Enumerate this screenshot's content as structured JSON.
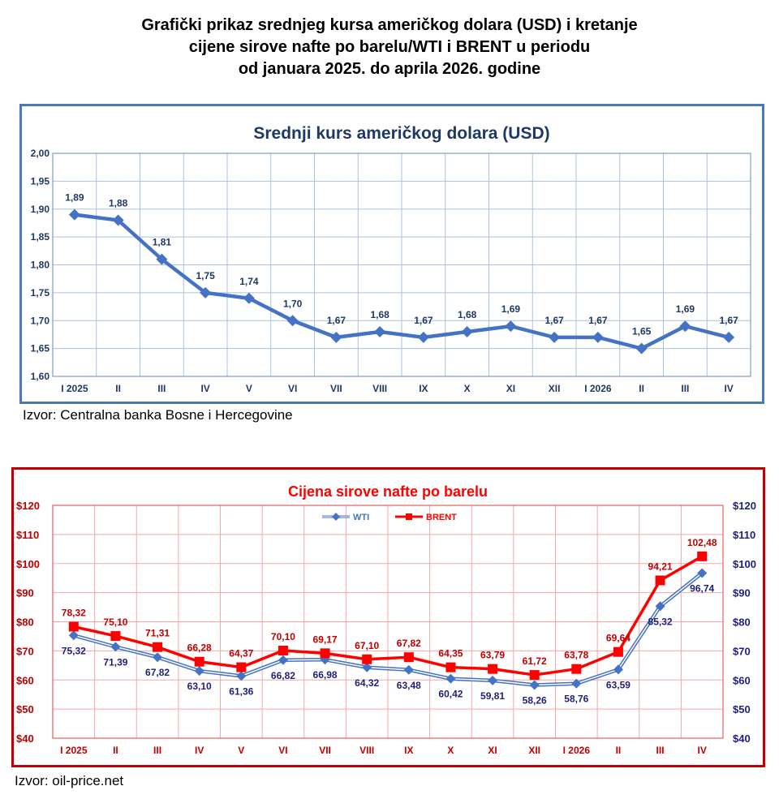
{
  "title_lines": [
    "Grafički prikaz srednjeg kursa američkog dolara (USD) i kretanje",
    "cijene sirove nafte po barelu/WTI i BRENT u periodu",
    "od januara 2025. do aprila 2026. godine"
  ],
  "chart_data": [
    {
      "type": "line",
      "title": "Srednji kurs američkog dolara (USD)",
      "categories": [
        "I 2025",
        "II",
        "III",
        "IV",
        "V",
        "VI",
        "VII",
        "VIII",
        "IX",
        "X",
        "XI",
        "XII",
        "I 2026",
        "II",
        "III",
        "IV"
      ],
      "series": [
        {
          "values": [
            1.89,
            1.88,
            1.81,
            1.75,
            1.74,
            1.7,
            1.67,
            1.68,
            1.67,
            1.68,
            1.69,
            1.67,
            1.67,
            1.65,
            1.69,
            1.67
          ],
          "labels": [
            "1,89",
            "1,88",
            "1,81",
            "1,75",
            "1,74",
            "1,70",
            "1,67",
            "1,68",
            "1,67",
            "1,68",
            "1,69",
            "1,67",
            "1,67",
            "1,65",
            "1,69",
            "1,67"
          ]
        }
      ],
      "ylim": [
        1.6,
        2.0
      ],
      "yticks": [
        "1,60",
        "1,65",
        "1,70",
        "1,75",
        "1,80",
        "1,85",
        "1,90",
        "1,95",
        "2,00"
      ],
      "grid": true,
      "legend": "none",
      "colors": {
        "line": "#4472c4",
        "frame": "#4a7ab5",
        "title": "#1f3864"
      }
    },
    {
      "type": "line",
      "title": "Cijena sirove nafte po barelu",
      "categories": [
        "I 2025",
        "II",
        "III",
        "IV",
        "V",
        "VI",
        "VII",
        "VIII",
        "IX",
        "X",
        "XI",
        "XII",
        "I 2026",
        "II",
        "III",
        "IV"
      ],
      "series": [
        {
          "name": "WTI",
          "values": [
            75.32,
            71.39,
            67.82,
            63.1,
            61.36,
            66.82,
            66.98,
            64.32,
            63.48,
            60.42,
            59.81,
            58.26,
            58.76,
            63.59,
            85.32,
            96.74
          ],
          "labels": [
            "75,32",
            "71,39",
            "67,82",
            "63,10",
            "61,36",
            "66,82",
            "66,98",
            "64,32",
            "63,48",
            "60,42",
            "59,81",
            "58,26",
            "58,76",
            "63,59",
            "85,32",
            "96,74"
          ]
        },
        {
          "name": "BRENT",
          "values": [
            78.32,
            75.1,
            71.31,
            66.28,
            64.37,
            70.1,
            69.17,
            67.1,
            67.82,
            64.35,
            63.79,
            61.72,
            63.78,
            69.64,
            94.21,
            102.48
          ],
          "labels": [
            "78,32",
            "75,10",
            "71,31",
            "66,28",
            "64,37",
            "70,10",
            "69,17",
            "67,10",
            "67,82",
            "64,35",
            "63,79",
            "61,72",
            "63,78",
            "69,64",
            "94,21",
            "102,48"
          ]
        }
      ],
      "ylim": [
        40,
        120
      ],
      "yticks": [
        "$40",
        "$50",
        "$60",
        "$70",
        "$80",
        "$90",
        "$100",
        "$110",
        "$120"
      ],
      "grid": true,
      "legend": "top-center",
      "colors": {
        "wti": "#4472c4",
        "wti_label": "#1f1f7a",
        "brent": "#ff0000",
        "frame": "#c00000",
        "left_axis": "#c00000",
        "right_axis": "#1f1f7a"
      }
    }
  ],
  "sources": {
    "usd": "Izvor: Centralna banka Bosne i Hercegovine",
    "oil": "Izvor: oil-price.net"
  }
}
